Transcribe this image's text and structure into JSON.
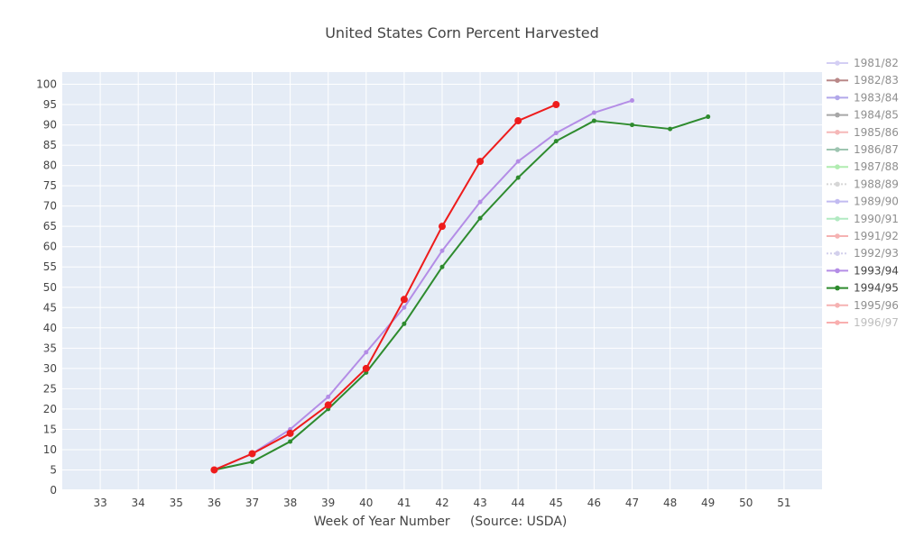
{
  "chart_data": {
    "type": "line",
    "title": "United States Corn Percent Harvested",
    "xlabel": "Week of Year Number     (Source: USDA)",
    "ylabel": "",
    "xlim": [
      32,
      52
    ],
    "ylim": [
      0,
      103
    ],
    "x_ticks": [
      33,
      34,
      35,
      36,
      37,
      38,
      39,
      40,
      41,
      42,
      43,
      44,
      45,
      46,
      47,
      48,
      49,
      50,
      51
    ],
    "y_ticks": [
      0,
      5,
      10,
      15,
      20,
      25,
      30,
      35,
      40,
      45,
      50,
      55,
      60,
      65,
      70,
      75,
      80,
      85,
      90,
      95,
      100
    ],
    "grid": true,
    "background": "#e5ecf6",
    "legend_position": "right",
    "series": [
      {
        "name": "1981/82",
        "color": "#b8b0ee",
        "opacity": 0.6,
        "dash": "solid",
        "marker": "circle",
        "x": [],
        "y": []
      },
      {
        "name": "1982/83",
        "color": "#8b3a3a",
        "opacity": 0.6,
        "dash": "solid",
        "marker": "circle",
        "x": [],
        "y": []
      },
      {
        "name": "1983/84",
        "color": "#7f6fdd",
        "opacity": 0.6,
        "dash": "solid",
        "marker": "circle",
        "x": [],
        "y": []
      },
      {
        "name": "1984/85",
        "color": "#6e6e6e",
        "opacity": 0.6,
        "dash": "solid",
        "marker": "circle",
        "x": [],
        "y": []
      },
      {
        "name": "1985/86",
        "color": "#f08a8a",
        "opacity": 0.6,
        "dash": "solid",
        "marker": "circle",
        "x": [],
        "y": []
      },
      {
        "name": "1986/87",
        "color": "#5e9f7e",
        "opacity": 0.6,
        "dash": "solid",
        "marker": "circle",
        "x": [],
        "y": []
      },
      {
        "name": "1987/88",
        "color": "#7de07d",
        "opacity": 0.6,
        "dash": "solid",
        "marker": "circle",
        "x": [],
        "y": []
      },
      {
        "name": "1988/89",
        "color": "#bcbcbc",
        "opacity": 0.6,
        "dash": "dot",
        "marker": "circle",
        "x": [],
        "y": []
      },
      {
        "name": "1989/90",
        "color": "#9b8ee8",
        "opacity": 0.6,
        "dash": "solid",
        "marker": "circle",
        "x": [],
        "y": []
      },
      {
        "name": "1990/91",
        "color": "#7fdd9b",
        "opacity": 0.6,
        "dash": "solid",
        "marker": "circle",
        "x": [],
        "y": []
      },
      {
        "name": "1991/92",
        "color": "#f07f7f",
        "opacity": 0.6,
        "dash": "solid",
        "marker": "circle",
        "x": [],
        "y": []
      },
      {
        "name": "1992/93",
        "color": "#b7b2e0",
        "opacity": 0.6,
        "dash": "dot",
        "marker": "circle",
        "x": [],
        "y": []
      },
      {
        "name": "1993/94",
        "color": "#b48de6",
        "opacity": 1,
        "dash": "solid",
        "marker": "circle",
        "markersize": 2.5,
        "x": [
          36,
          37,
          38,
          39,
          40,
          41,
          42,
          43,
          44,
          45,
          46,
          47
        ],
        "y": [
          5,
          9,
          15,
          23,
          34,
          45,
          59,
          71,
          81,
          88,
          93,
          96
        ]
      },
      {
        "name": "1994/95",
        "color": "#2e8b2e",
        "opacity": 1,
        "dash": "solid",
        "marker": "circle",
        "markersize": 2.5,
        "x": [
          36,
          37,
          38,
          39,
          40,
          41,
          42,
          43,
          44,
          45,
          46,
          47,
          48,
          49
        ],
        "y": [
          5,
          7,
          12,
          20,
          29,
          41,
          55,
          67,
          77,
          86,
          91,
          90,
          89,
          92
        ]
      },
      {
        "name": "1995/96",
        "color": "#f07f7f",
        "opacity": 0.6,
        "dash": "solid",
        "marker": "circle",
        "x": [],
        "y": []
      },
      {
        "name": "1996/97",
        "color": "#ee1c1c",
        "opacity": 1,
        "legend_opacity": 0.35,
        "dash": "solid",
        "marker": "circle",
        "markersize": 4,
        "x": [
          36,
          37,
          38,
          39,
          40,
          41,
          42,
          43,
          44,
          45
        ],
        "y": [
          5,
          9,
          14,
          21,
          30,
          47,
          65,
          81,
          91,
          95
        ]
      }
    ]
  }
}
